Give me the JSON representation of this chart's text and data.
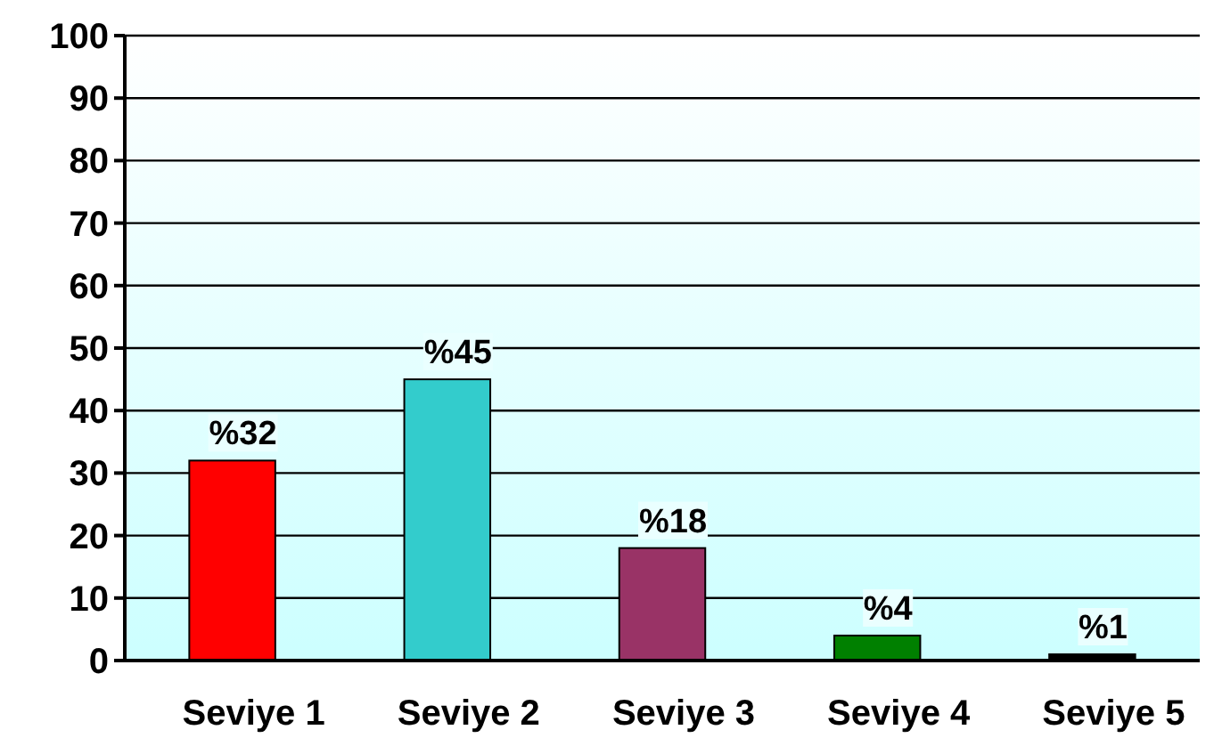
{
  "chart_data": {
    "type": "bar",
    "categories": [
      "Seviye 1",
      "Seviye 2",
      "Seviye 3",
      "Seviye 4",
      "Seviye 5"
    ],
    "values": [
      32,
      45,
      18,
      4,
      1
    ],
    "colors": [
      "#ff0000",
      "#33cccc",
      "#993366",
      "#008000",
      "#000000"
    ],
    "value_labels": [
      "%32",
      "%45",
      "%18",
      "%4",
      "%1"
    ],
    "ylim": [
      0,
      100
    ],
    "yticks": [
      0,
      10,
      20,
      30,
      40,
      50,
      60,
      70,
      80,
      90,
      100
    ],
    "grid": "y"
  }
}
